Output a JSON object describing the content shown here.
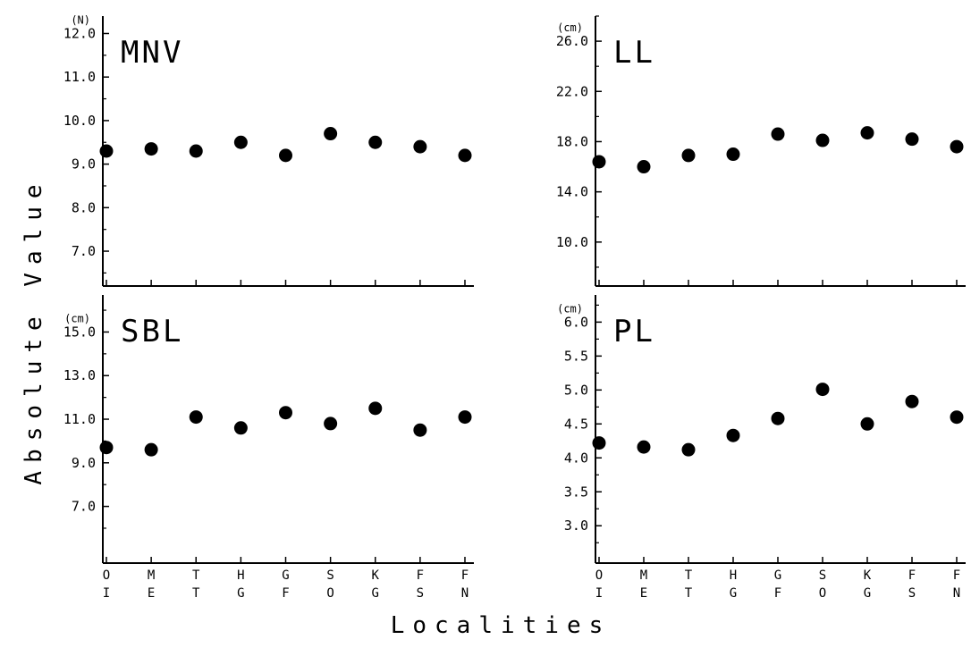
{
  "figure": {
    "ylabel": "Absolute Value",
    "xlabel": "Localities"
  },
  "chart_data": [
    {
      "type": "scatter",
      "title": "MNV",
      "unit": "(N)",
      "categories": [
        "OI",
        "ME",
        "TT",
        "HG",
        "GF",
        "SO",
        "KG",
        "FS",
        "FN"
      ],
      "values": [
        9.3,
        9.35,
        9.3,
        9.5,
        9.2,
        9.7,
        9.5,
        9.4,
        9.2
      ],
      "yticks": [
        "7.0",
        "8.0",
        "9.0",
        "10.0",
        "11.0",
        "12.0"
      ],
      "ylim": [
        6.2,
        12.4
      ]
    },
    {
      "type": "scatter",
      "title": "LL",
      "unit": "(cm)",
      "categories": [
        "OI",
        "ME",
        "TT",
        "HG",
        "GF",
        "SO",
        "KG",
        "FS",
        "FN"
      ],
      "values": [
        16.4,
        16.0,
        16.9,
        17.0,
        18.6,
        18.1,
        18.7,
        18.2,
        17.6
      ],
      "yticks": [
        "10.0",
        "14.0",
        "18.0",
        "22.0",
        "26.0"
      ],
      "ylim": [
        6.5,
        28.0
      ]
    },
    {
      "type": "scatter",
      "title": "SBL",
      "unit": "(cm)",
      "categories": [
        "OI",
        "ME",
        "TT",
        "HG",
        "GF",
        "SO",
        "KG",
        "FS",
        "FN"
      ],
      "values": [
        9.7,
        9.6,
        11.1,
        10.6,
        11.3,
        10.8,
        11.5,
        10.5,
        11.1
      ],
      "yticks": [
        "7.0",
        "9.0",
        "11.0",
        "13.0",
        "15.0"
      ],
      "ylim": [
        4.4,
        16.7
      ]
    },
    {
      "type": "scatter",
      "title": "PL",
      "unit": "(cm)",
      "categories": [
        "OI",
        "ME",
        "TT",
        "HG",
        "GF",
        "SO",
        "KG",
        "FS",
        "FN"
      ],
      "values": [
        4.22,
        4.16,
        4.12,
        4.33,
        4.58,
        5.01,
        4.5,
        4.83,
        4.6
      ],
      "yticks": [
        "3.0",
        "3.5",
        "4.0",
        "4.5",
        "5.0",
        "5.5",
        "6.0"
      ],
      "ylim": [
        2.45,
        6.4
      ]
    }
  ]
}
